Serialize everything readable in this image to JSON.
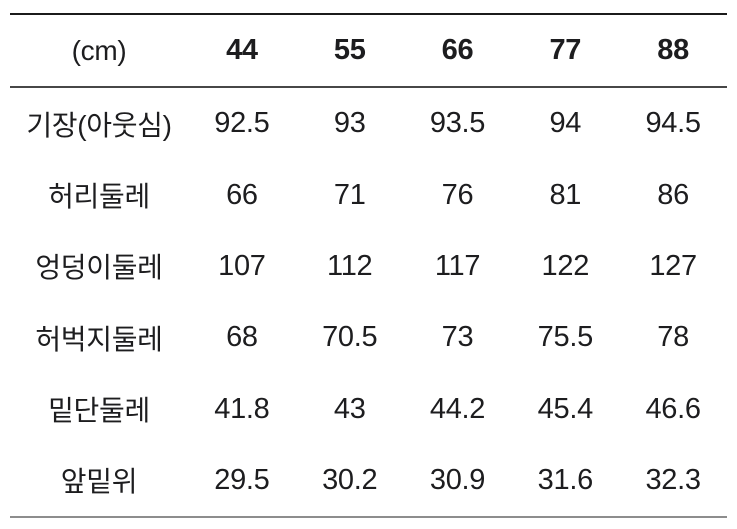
{
  "chart_data": {
    "type": "table",
    "title": "",
    "unit_label": "(cm)",
    "columns": [
      "44",
      "55",
      "66",
      "77",
      "88"
    ],
    "rows": [
      {
        "label": "기장(아웃심)",
        "values": [
          "92.5",
          "93",
          "93.5",
          "94",
          "94.5"
        ]
      },
      {
        "label": "허리둘레",
        "values": [
          "66",
          "71",
          "76",
          "81",
          "86"
        ]
      },
      {
        "label": "엉덩이둘레",
        "values": [
          "107",
          "112",
          "117",
          "122",
          "127"
        ]
      },
      {
        "label": "허벅지둘레",
        "values": [
          "68",
          "70.5",
          "73",
          "75.5",
          "78"
        ]
      },
      {
        "label": "밑단둘레",
        "values": [
          "41.8",
          "43",
          "44.2",
          "45.4",
          "46.6"
        ]
      },
      {
        "label": "앞밑위",
        "values": [
          "29.5",
          "30.2",
          "30.9",
          "31.6",
          "32.3"
        ]
      }
    ],
    "layout": {
      "grid": "horizontal rules only: top, under header, bottom",
      "header_bold": true
    }
  },
  "colors": {
    "text": "#1d1d1f",
    "top_border": "#1b1b1b",
    "header_divider": "#474747",
    "bottom_border": "#8d8d8d",
    "background": "#ffffff"
  }
}
